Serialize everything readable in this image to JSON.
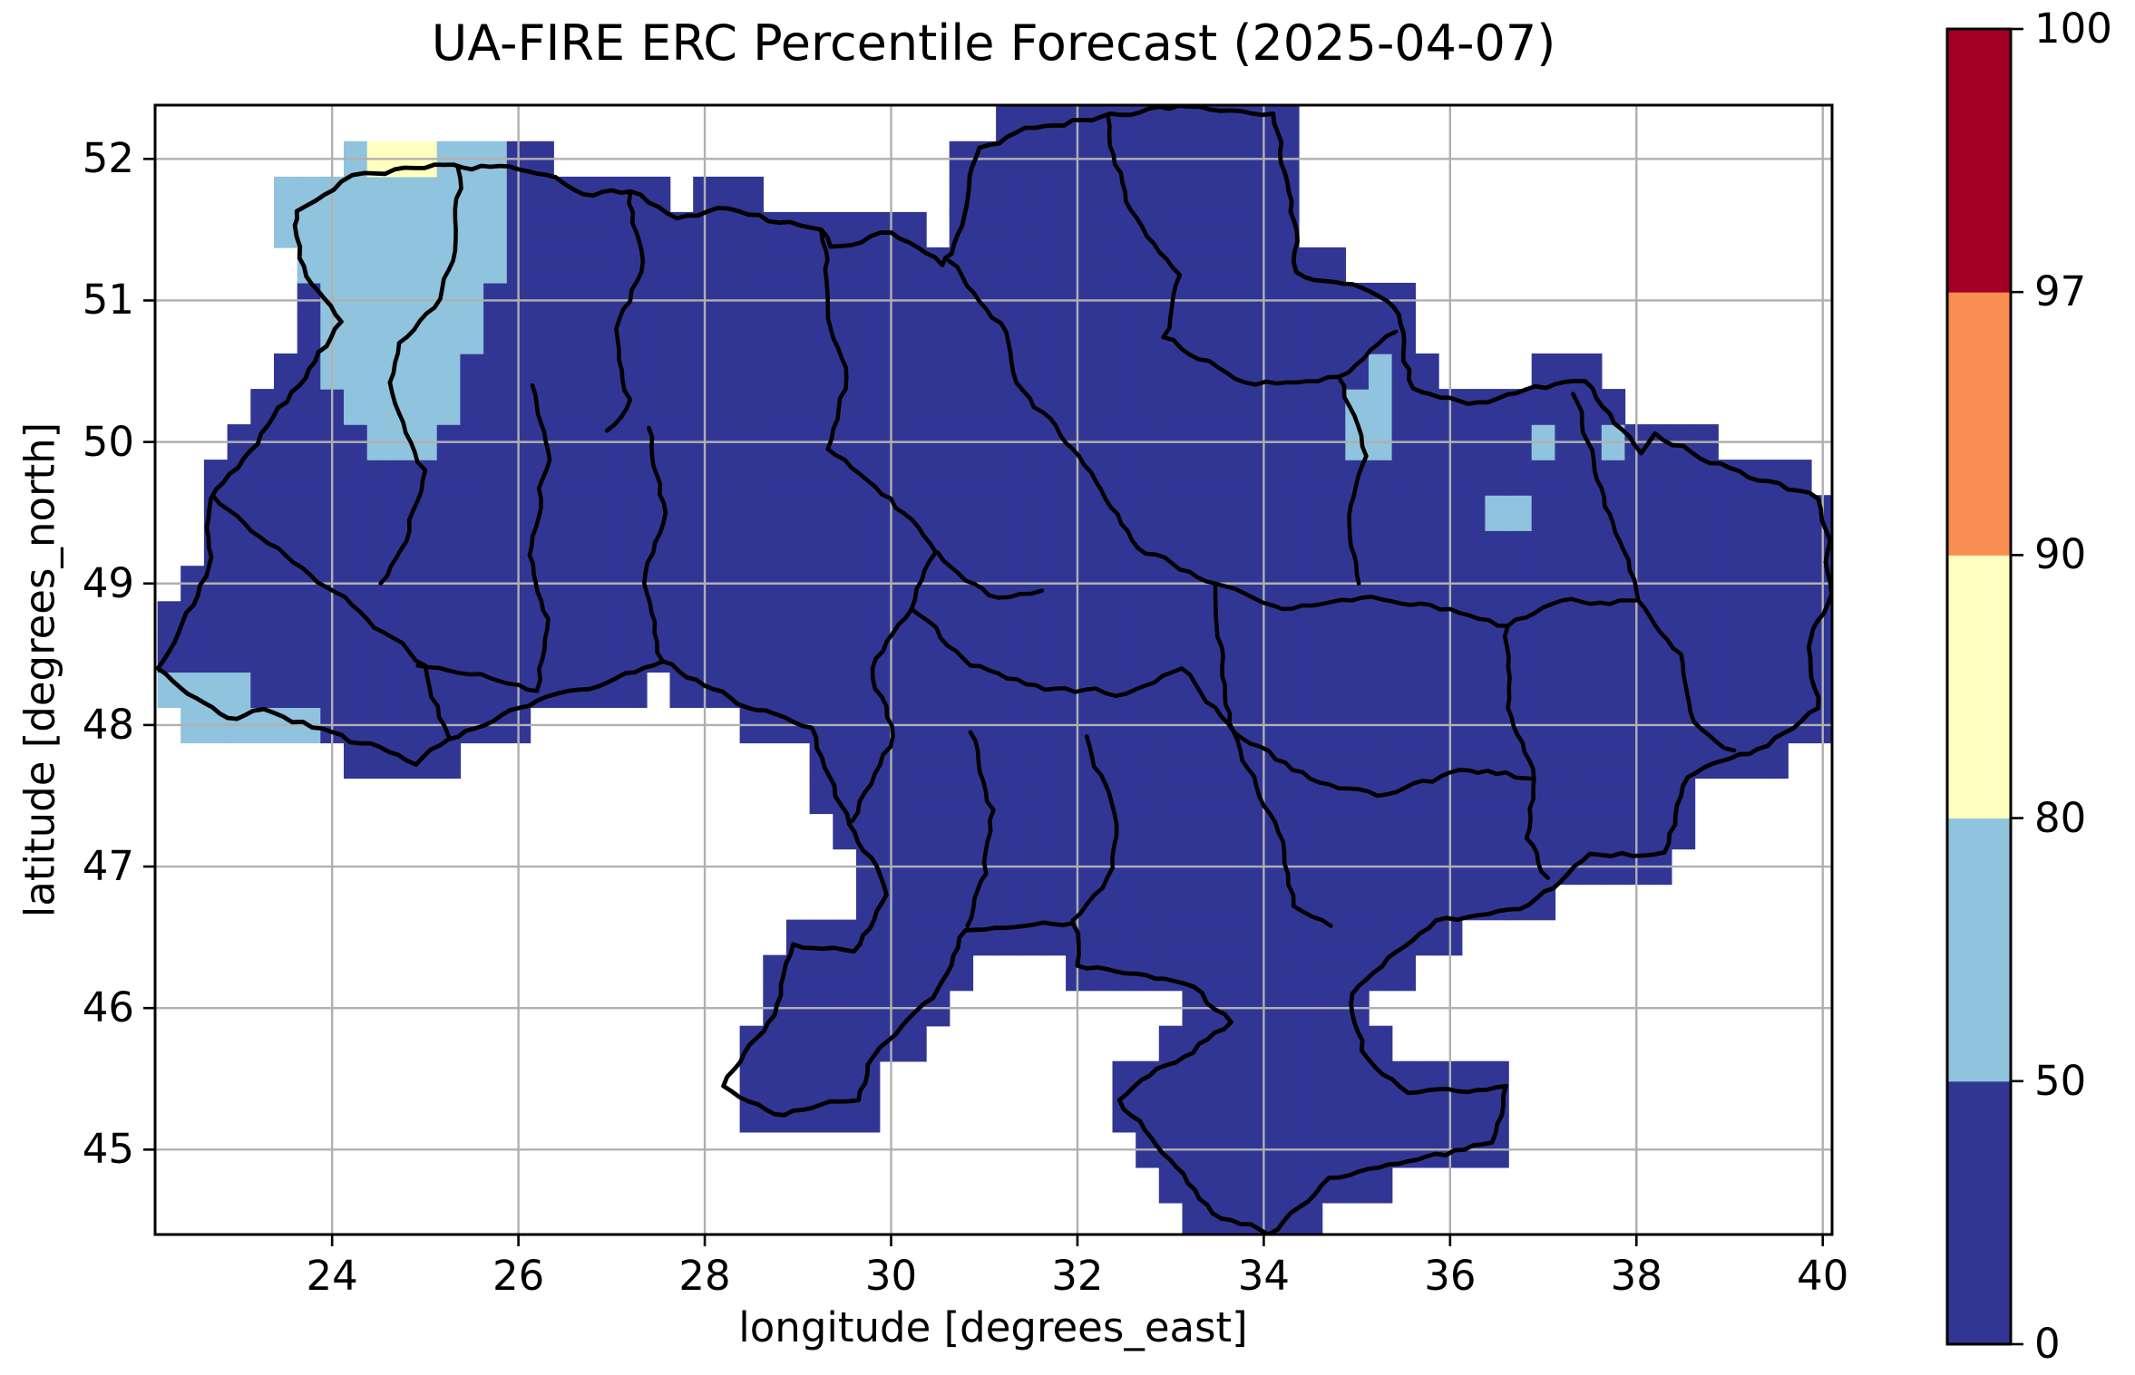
{
  "figure": {
    "title": "UA-FIRE ERC Percentile Forecast (2025-04-07)",
    "xlabel": "longitude [degrees_east]",
    "ylabel": "latitude [degrees_north]"
  },
  "chart_data": {
    "type": "heatmap",
    "subtype": "gridded-geographic-percentile-map",
    "region_shown": "Ukraine with oblast boundaries",
    "title": "UA-FIRE ERC Percentile Forecast (2025-04-07)",
    "xlabel": "longitude [degrees_east]",
    "ylabel": "latitude [degrees_north]",
    "xlim": [
      22.1,
      40.1
    ],
    "ylim": [
      44.4,
      52.38
    ],
    "xticks": [
      24,
      26,
      28,
      30,
      32,
      34,
      36,
      38,
      40
    ],
    "yticks": [
      45,
      46,
      47,
      48,
      49,
      50,
      51,
      52
    ],
    "grid": true,
    "grid_color": "#b0b0b0",
    "background_color": "#ffffff",
    "boundary_line_color": "#000000",
    "cell_size_deg": 0.25,
    "colorbar": {
      "levels": [
        0,
        50,
        80,
        90,
        97,
        100
      ],
      "labels": [
        "0",
        "50",
        "80",
        "90",
        "97",
        "100"
      ],
      "colors": [
        "#313695",
        "#90c3dd",
        "#ffffbf",
        "#f98e52",
        "#a50026"
      ],
      "bins": [
        "0-50",
        "50-80",
        "80-90",
        "90-97",
        "97-100"
      ],
      "spacing": "uniform",
      "outline_color": "#000000"
    },
    "dominant_bin": "0-50",
    "anomaly_regions": {
      "lightblue_50_80_polygon_nw": [
        [
          23.38,
          51.58
        ],
        [
          23.38,
          51.9
        ],
        [
          24.13,
          52.2
        ],
        [
          25.88,
          52.2
        ],
        [
          25.88,
          51.13
        ],
        [
          25.63,
          51.13
        ],
        [
          25.63,
          50.63
        ],
        [
          25.38,
          50.38
        ],
        [
          25.38,
          50.13
        ],
        [
          25.13,
          49.95
        ],
        [
          24.38,
          49.95
        ],
        [
          24.38,
          50.13
        ],
        [
          23.88,
          50.38
        ],
        [
          23.88,
          51.13
        ],
        [
          23.63,
          51.13
        ],
        [
          23.63,
          51.33
        ]
      ],
      "yellow_80_90_polygon_nw": [
        [
          24.38,
          51.88
        ],
        [
          24.38,
          52.2
        ],
        [
          25.13,
          52.2
        ],
        [
          25.13,
          51.88
        ]
      ],
      "lightblue_50_80_cells": [
        [
          22.25,
          48.25
        ],
        [
          22.5,
          48.25
        ],
        [
          22.75,
          48.25
        ],
        [
          23.0,
          48.25
        ],
        [
          22.5,
          48.0
        ],
        [
          22.75,
          48.0
        ],
        [
          23.0,
          48.0
        ],
        [
          23.25,
          48.0
        ],
        [
          23.5,
          48.0
        ],
        [
          23.75,
          48.0
        ],
        [
          23.5,
          51.75
        ],
        [
          35.25,
          50.5
        ],
        [
          35.0,
          50.25
        ],
        [
          35.25,
          50.25
        ],
        [
          35.0,
          50.0
        ],
        [
          35.25,
          50.0
        ],
        [
          37.0,
          50.0
        ],
        [
          37.75,
          50.0
        ],
        [
          36.5,
          49.5
        ],
        [
          36.75,
          49.5
        ]
      ]
    },
    "country_border_polygon": [
      [
        23.6,
        51.53
      ],
      [
        23.62,
        51.63
      ],
      [
        24.1,
        51.84
      ],
      [
        24.35,
        51.9
      ],
      [
        25.1,
        51.96
      ],
      [
        25.8,
        51.95
      ],
      [
        26.4,
        51.87
      ],
      [
        26.7,
        51.75
      ],
      [
        27.2,
        51.77
      ],
      [
        27.7,
        51.58
      ],
      [
        28.25,
        51.65
      ],
      [
        28.8,
        51.55
      ],
      [
        29.25,
        51.5
      ],
      [
        29.35,
        51.38
      ],
      [
        30.0,
        51.48
      ],
      [
        30.55,
        51.25
      ],
      [
        30.65,
        51.33
      ],
      [
        30.95,
        52.08
      ],
      [
        31.55,
        52.22
      ],
      [
        32.35,
        52.32
      ],
      [
        33.2,
        52.37
      ],
      [
        34.1,
        52.32
      ],
      [
        34.3,
        51.7
      ],
      [
        34.35,
        51.2
      ],
      [
        35.15,
        51.06
      ],
      [
        35.45,
        50.9
      ],
      [
        35.6,
        50.38
      ],
      [
        36.3,
        50.28
      ],
      [
        37.45,
        50.43
      ],
      [
        38.05,
        49.92
      ],
      [
        38.2,
        50.06
      ],
      [
        39.2,
        49.75
      ],
      [
        39.95,
        49.6
      ],
      [
        40.08,
        49.3
      ],
      [
        40.05,
        48.85
      ],
      [
        39.85,
        48.55
      ],
      [
        39.95,
        48.12
      ],
      [
        39.3,
        47.83
      ],
      [
        38.55,
        47.63
      ],
      [
        38.3,
        47.1
      ],
      [
        37.5,
        47.09
      ],
      [
        36.75,
        46.7
      ],
      [
        35.85,
        46.62
      ],
      [
        34.95,
        46.1
      ],
      [
        35.05,
        45.7
      ],
      [
        35.55,
        45.4
      ],
      [
        36.6,
        45.45
      ],
      [
        36.45,
        45.05
      ],
      [
        35.45,
        44.9
      ],
      [
        34.7,
        44.8
      ],
      [
        34.05,
        44.4
      ],
      [
        33.45,
        44.55
      ],
      [
        32.45,
        45.35
      ],
      [
        33.65,
        45.9
      ],
      [
        33.25,
        46.15
      ],
      [
        32.0,
        46.3
      ],
      [
        31.95,
        46.6
      ],
      [
        30.8,
        46.55
      ],
      [
        30.45,
        46.07
      ],
      [
        29.75,
        45.6
      ],
      [
        29.65,
        45.35
      ],
      [
        28.75,
        45.25
      ],
      [
        28.2,
        45.45
      ],
      [
        28.75,
        45.95
      ],
      [
        28.95,
        46.45
      ],
      [
        29.6,
        46.4
      ],
      [
        29.95,
        46.8
      ],
      [
        29.55,
        47.3
      ],
      [
        29.15,
        47.98
      ],
      [
        28.35,
        48.15
      ],
      [
        27.55,
        48.45
      ],
      [
        26.65,
        48.25
      ],
      [
        26.3,
        48.2
      ],
      [
        25.25,
        47.9
      ],
      [
        24.9,
        47.72
      ],
      [
        24.0,
        47.95
      ],
      [
        23.15,
        48.1
      ],
      [
        22.88,
        48.05
      ],
      [
        22.45,
        48.22
      ],
      [
        22.13,
        48.4
      ],
      [
        22.65,
        49.05
      ],
      [
        22.7,
        49.6
      ],
      [
        23.65,
        50.4
      ],
      [
        24.1,
        50.85
      ],
      [
        23.65,
        51.3
      ]
    ],
    "admin_boundaries": [
      [
        [
          25.35,
          51.94
        ],
        [
          25.32,
          51.35
        ],
        [
          25.1,
          50.95
        ],
        [
          24.72,
          50.7
        ],
        [
          24.62,
          50.42
        ]
      ],
      [
        [
          27.2,
          51.76
        ],
        [
          27.32,
          51.2
        ],
        [
          27.05,
          50.8
        ],
        [
          27.2,
          50.3
        ],
        [
          26.95,
          50.08
        ]
      ],
      [
        [
          29.25,
          51.49
        ],
        [
          29.32,
          50.95
        ],
        [
          29.52,
          50.45
        ],
        [
          29.32,
          49.95
        ]
      ],
      [
        [
          30.62,
          51.28
        ],
        [
          31.18,
          50.84
        ],
        [
          31.42,
          50.36
        ]
      ],
      [
        [
          32.33,
          52.3
        ],
        [
          32.52,
          51.7
        ],
        [
          33.1,
          51.18
        ],
        [
          32.92,
          50.74
        ]
      ],
      [
        [
          32.92,
          50.74
        ],
        [
          33.8,
          50.42
        ],
        [
          34.8,
          50.46
        ],
        [
          35.42,
          50.78
        ]
      ],
      [
        [
          24.62,
          50.42
        ],
        [
          25.0,
          49.8
        ],
        [
          24.8,
          49.3
        ],
        [
          24.52,
          49.0
        ]
      ],
      [
        [
          26.15,
          50.4
        ],
        [
          26.3,
          49.8
        ],
        [
          26.12,
          49.2
        ],
        [
          26.32,
          48.75
        ],
        [
          26.2,
          48.25
        ]
      ],
      [
        [
          27.4,
          50.1
        ],
        [
          27.58,
          49.5
        ],
        [
          27.35,
          49.0
        ],
        [
          27.55,
          48.45
        ]
      ],
      [
        [
          22.72,
          49.62
        ],
        [
          23.5,
          49.2
        ],
        [
          24.3,
          48.8
        ],
        [
          25.0,
          48.42
        ],
        [
          25.25,
          47.92
        ]
      ],
      [
        [
          24.92,
          48.42
        ],
        [
          25.6,
          48.36
        ],
        [
          26.2,
          48.24
        ]
      ],
      [
        [
          29.32,
          49.95
        ],
        [
          30.0,
          49.6
        ],
        [
          30.48,
          49.22
        ],
        [
          30.22,
          48.82
        ]
      ],
      [
        [
          30.22,
          48.82
        ],
        [
          29.8,
          48.4
        ],
        [
          30.02,
          47.92
        ],
        [
          29.58,
          47.32
        ]
      ],
      [
        [
          31.42,
          50.36
        ],
        [
          31.95,
          49.95
        ],
        [
          32.3,
          49.6
        ],
        [
          32.65,
          49.25
        ],
        [
          33.48,
          49.0
        ]
      ],
      [
        [
          30.22,
          48.82
        ],
        [
          30.85,
          48.42
        ],
        [
          31.65,
          48.25
        ],
        [
          32.52,
          48.22
        ],
        [
          33.12,
          48.4
        ],
        [
          33.68,
          47.95
        ]
      ],
      [
        [
          34.8,
          50.46
        ],
        [
          35.1,
          49.9
        ],
        [
          34.92,
          49.4
        ],
        [
          35.02,
          49.0
        ]
      ],
      [
        [
          33.48,
          49.0
        ],
        [
          34.2,
          48.82
        ],
        [
          35.05,
          48.9
        ],
        [
          36.0,
          48.82
        ],
        [
          36.62,
          48.7
        ],
        [
          37.2,
          48.88
        ],
        [
          38.02,
          48.88
        ]
      ],
      [
        [
          37.32,
          50.34
        ],
        [
          37.55,
          49.8
        ],
        [
          37.82,
          49.3
        ],
        [
          38.02,
          48.88
        ]
      ],
      [
        [
          38.02,
          48.88
        ],
        [
          38.48,
          48.5
        ],
        [
          38.62,
          48.02
        ],
        [
          39.05,
          47.82
        ]
      ],
      [
        [
          33.68,
          47.95
        ],
        [
          34.5,
          47.62
        ],
        [
          35.22,
          47.5
        ],
        [
          36.2,
          47.68
        ],
        [
          36.9,
          47.62
        ]
      ],
      [
        [
          36.9,
          47.62
        ],
        [
          36.62,
          48.12
        ],
        [
          36.62,
          48.7
        ]
      ],
      [
        [
          36.9,
          47.62
        ],
        [
          36.82,
          47.2
        ],
        [
          37.05,
          46.92
        ]
      ],
      [
        [
          32.1,
          47.92
        ],
        [
          32.42,
          47.3
        ],
        [
          32.32,
          46.92
        ],
        [
          31.95,
          46.62
        ]
      ],
      [
        [
          30.85,
          47.95
        ],
        [
          31.1,
          47.4
        ],
        [
          31.02,
          46.95
        ],
        [
          30.82,
          46.58
        ]
      ],
      [
        [
          34.22,
          47.1
        ],
        [
          34.32,
          46.72
        ],
        [
          34.72,
          46.58
        ]
      ],
      [
        [
          33.68,
          47.95
        ],
        [
          33.95,
          47.5
        ],
        [
          34.22,
          47.1
        ]
      ],
      [
        [
          33.48,
          49.0
        ],
        [
          33.55,
          48.55
        ],
        [
          33.68,
          47.95
        ]
      ],
      [
        [
          30.5,
          49.22
        ],
        [
          30.8,
          49.02
        ],
        [
          31.15,
          48.9
        ],
        [
          31.62,
          48.95
        ]
      ]
    ]
  }
}
